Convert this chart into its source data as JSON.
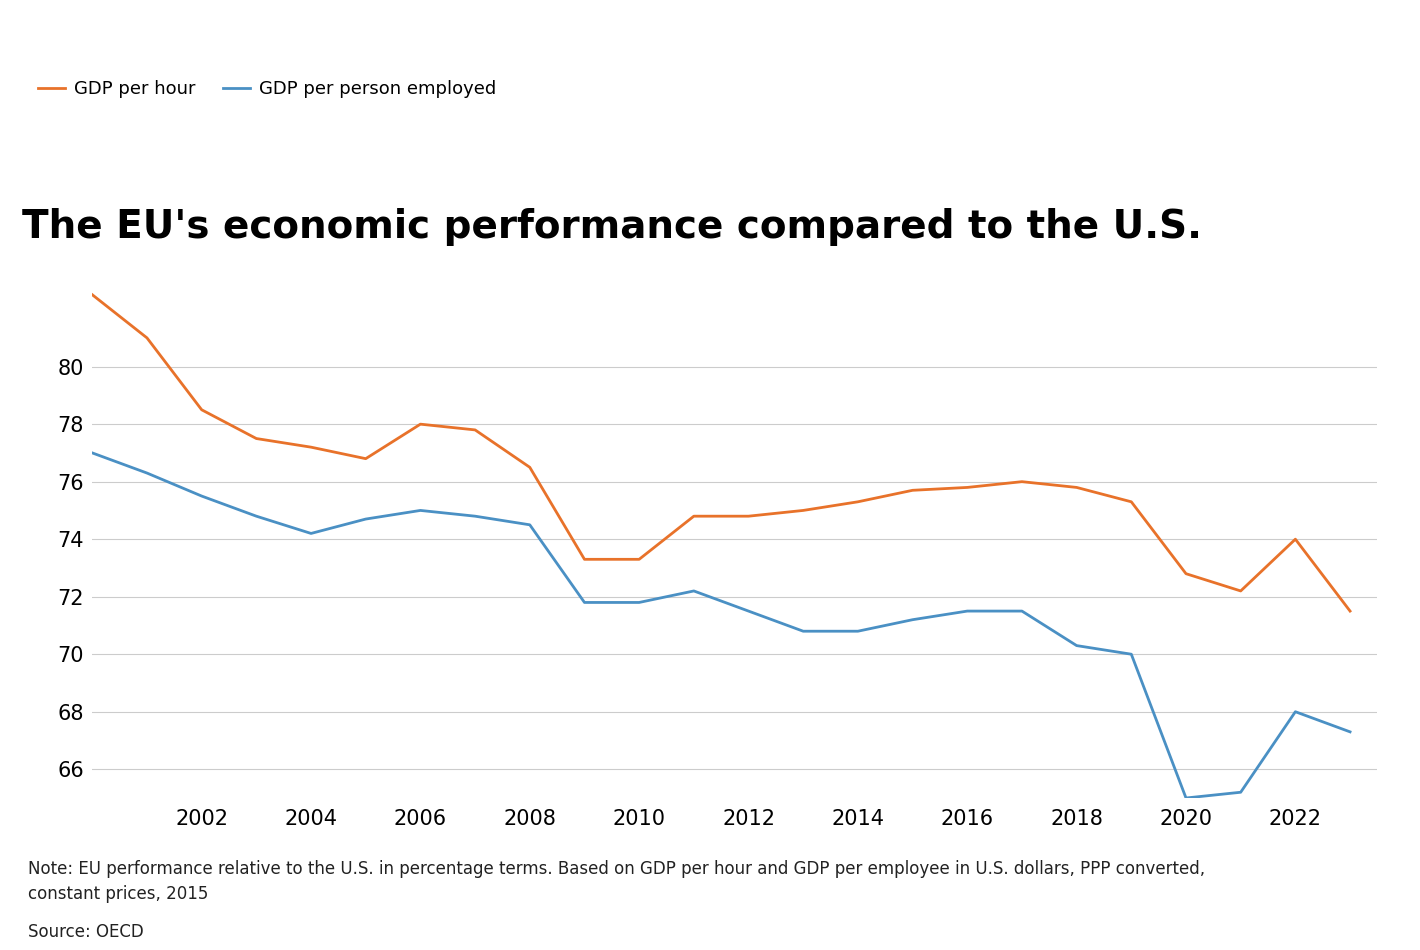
{
  "title": "The EU's economic performance compared to the U.S.",
  "title_fontsize": 28,
  "title_fontweight": "bold",
  "legend_labels": [
    "GDP per hour",
    "GDP per person employed"
  ],
  "legend_colors": [
    "#E8722A",
    "#4A90C4"
  ],
  "note_text": "Note: EU performance relative to the U.S. in percentage terms. Based on GDP per hour and GDP per employee in U.S. dollars, PPP converted,\nconstant prices, 2015",
  "source_text": "Source: OECD",
  "background_color": "#ffffff",
  "gdp_per_hour": {
    "years": [
      2000,
      2001,
      2002,
      2003,
      2004,
      2005,
      2006,
      2007,
      2008,
      2009,
      2010,
      2011,
      2012,
      2013,
      2014,
      2015,
      2016,
      2017,
      2018,
      2019,
      2020,
      2021,
      2022,
      2023
    ],
    "values": [
      82.5,
      81.0,
      78.5,
      77.5,
      77.2,
      76.8,
      78.0,
      77.8,
      76.5,
      73.3,
      73.3,
      74.8,
      74.8,
      75.0,
      75.3,
      75.7,
      75.8,
      76.0,
      75.8,
      75.3,
      72.8,
      72.2,
      74.0,
      71.5
    ],
    "color": "#E8722A",
    "linewidth": 2.0
  },
  "gdp_per_person": {
    "years": [
      2000,
      2001,
      2002,
      2003,
      2004,
      2005,
      2006,
      2007,
      2008,
      2009,
      2010,
      2011,
      2012,
      2013,
      2014,
      2015,
      2016,
      2017,
      2018,
      2019,
      2020,
      2021,
      2022,
      2023
    ],
    "values": [
      77.0,
      76.3,
      75.5,
      74.8,
      74.2,
      74.7,
      75.0,
      74.8,
      74.5,
      71.8,
      71.8,
      72.2,
      71.5,
      70.8,
      70.8,
      71.2,
      71.5,
      71.5,
      70.3,
      70.0,
      65.0,
      65.2,
      68.0,
      67.3
    ],
    "color": "#4A90C4",
    "linewidth": 2.0
  },
  "ylim": [
    65.0,
    83.5
  ],
  "yticks": [
    66,
    68,
    70,
    72,
    74,
    76,
    78,
    80
  ],
  "xticks": [
    2002,
    2004,
    2006,
    2008,
    2010,
    2012,
    2014,
    2016,
    2018,
    2020,
    2022
  ],
  "grid_color": "#cccccc",
  "grid_linewidth": 0.8,
  "tick_fontsize": 15,
  "note_fontsize": 12,
  "source_fontsize": 12
}
